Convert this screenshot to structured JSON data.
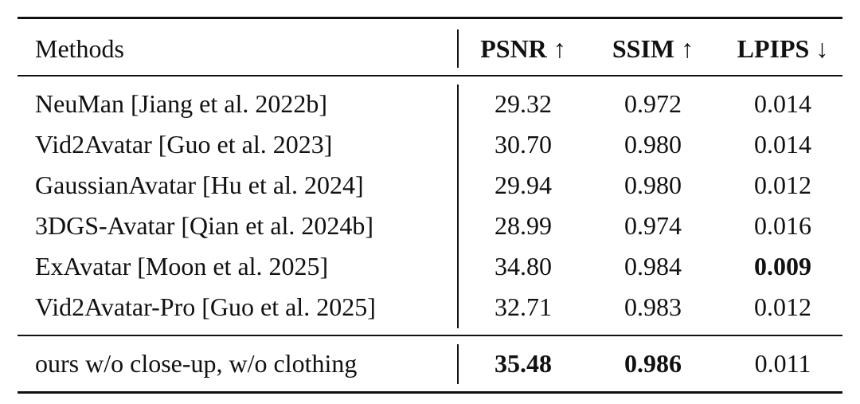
{
  "table": {
    "header": [
      "Methods",
      "PSNR ↑",
      "SSIM ↑",
      "LPIPS ↓"
    ],
    "rows": [
      [
        "NeuMan [Jiang et al. 2022b]",
        "29.32",
        "0.972",
        "0.014"
      ],
      [
        "Vid2Avatar [Guo et al. 2023]",
        "30.70",
        "0.980",
        "0.014"
      ],
      [
        "GaussianAvatar [Hu et al. 2024]",
        "29.94",
        "0.980",
        "0.012"
      ],
      [
        "3DGS-Avatar [Qian et al. 2024b]",
        "28.99",
        "0.974",
        "0.016"
      ],
      [
        "ExAvatar [Moon et al. 2025]",
        "34.80",
        "0.984",
        "0.009"
      ],
      [
        "Vid2Avatar-Pro [Guo et al. 2025]",
        "32.71",
        "0.983",
        "0.012"
      ]
    ],
    "ours": [
      "ours w/o close-up, w/o clothing",
      "35.48",
      "0.986",
      "0.011"
    ]
  }
}
